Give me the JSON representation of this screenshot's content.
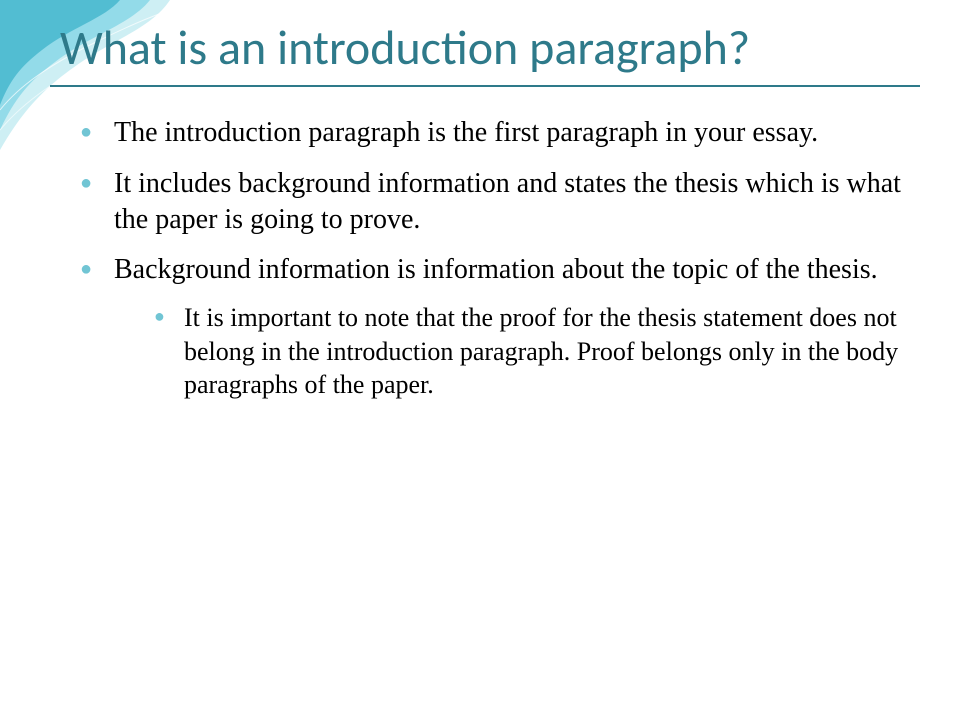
{
  "slide": {
    "title": "What is an introduction paragraph?",
    "title_color": "#2e7a8a",
    "title_fontsize": 48,
    "rule_color": "#2e7a8a",
    "bullet_color": "#71c5d4",
    "body_color": "#000000",
    "body_fontsize": 28,
    "sub_fontsize": 26,
    "background": "#ffffff",
    "wave_colors": [
      "#8fd9e8",
      "#4bb9cf",
      "#c9edf3"
    ],
    "bullets": [
      {
        "text": "The introduction paragraph is the first paragraph in your essay."
      },
      {
        "text": "It includes background information and states the thesis which is what the paper is going to prove."
      },
      {
        "text": "Background information is information about the topic of the thesis.",
        "sub": [
          {
            "text": "It is important to note that the proof for the thesis statement does not belong in the introduction paragraph. Proof belongs only in the body paragraphs of the paper."
          }
        ]
      }
    ]
  }
}
